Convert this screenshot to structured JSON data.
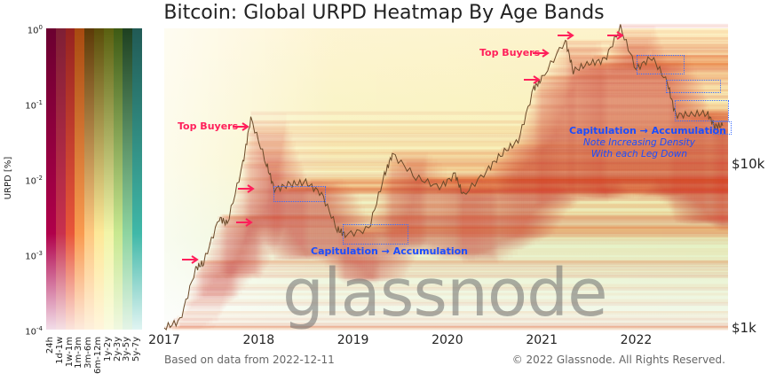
{
  "chart_data": {
    "type": "heatmap",
    "title": "Bitcoin: Global URPD Heatmap By Age Bands",
    "colorbar": {
      "label": "URPD [%]",
      "scale": "log",
      "ticks": [
        "10^0",
        "10^-1",
        "10^-2",
        "10^-3",
        "10^-4"
      ],
      "bands": [
        {
          "name": "24h",
          "colors": [
            "#6b0030",
            "#b0004a",
            "#f2dde8"
          ]
        },
        {
          "name": "1d-1w",
          "colors": [
            "#7f1f35",
            "#c8304e",
            "#f5e0e4"
          ]
        },
        {
          "name": "1w-1m",
          "colors": [
            "#962320",
            "#e8553a",
            "#fbe4dc"
          ]
        },
        {
          "name": "1m-3m",
          "colors": [
            "#a84a10",
            "#f99a50",
            "#fdeadc"
          ]
        },
        {
          "name": "3m-6m",
          "colors": [
            "#5c3a08",
            "#fdc880",
            "#fef0dc"
          ]
        },
        {
          "name": "6m-12m",
          "colors": [
            "#5a4d0a",
            "#fde898",
            "#fff5dc"
          ]
        },
        {
          "name": "1y-2y",
          "colors": [
            "#5a6010",
            "#f2f4a8",
            "#fafbe0"
          ]
        },
        {
          "name": "2y-3y",
          "colors": [
            "#3e5a14",
            "#c8e890",
            "#f0f8e0"
          ]
        },
        {
          "name": "3y-5y",
          "colors": [
            "#1e4020",
            "#8ed4a0",
            "#e4f4e6"
          ]
        },
        {
          "name": "5y-7y",
          "colors": [
            "#215a55",
            "#40b8a8",
            "#e0f4f2"
          ]
        }
      ]
    },
    "x_ticks": [
      "2017",
      "2018",
      "2019",
      "2020",
      "2021",
      "2022"
    ],
    "y_right_ticks": [
      {
        "label": "$10k",
        "value": 10000
      },
      {
        "label": "$1k",
        "value": 1000
      }
    ],
    "y_scale": "log",
    "price_series": [
      [
        "2017-01",
        1000
      ],
      [
        "2017-03",
        1100
      ],
      [
        "2017-05",
        2300
      ],
      [
        "2017-06",
        2500
      ],
      [
        "2017-08",
        4700
      ],
      [
        "2017-09",
        4300
      ],
      [
        "2017-11",
        10000
      ],
      [
        "2017-12",
        19000
      ],
      [
        "2018-02",
        10000
      ],
      [
        "2018-03",
        7000
      ],
      [
        "2018-05",
        7500
      ],
      [
        "2018-07",
        7700
      ],
      [
        "2018-09",
        6600
      ],
      [
        "2018-11",
        4000
      ],
      [
        "2018-12",
        3700
      ],
      [
        "2019-03",
        4000
      ],
      [
        "2019-05",
        8500
      ],
      [
        "2019-06",
        11500
      ],
      [
        "2019-09",
        8300
      ],
      [
        "2019-12",
        7200
      ],
      [
        "2020-02",
        8600
      ],
      [
        "2020-03",
        6400
      ],
      [
        "2020-06",
        9100
      ],
      [
        "2020-08",
        11700
      ],
      [
        "2020-10",
        13800
      ],
      [
        "2020-12",
        29000
      ],
      [
        "2021-01",
        33000
      ],
      [
        "2021-04",
        57000
      ],
      [
        "2021-05",
        37000
      ],
      [
        "2021-07",
        41000
      ],
      [
        "2021-09",
        43000
      ],
      [
        "2021-11",
        68000
      ],
      [
        "2022-01",
        38000
      ],
      [
        "2022-03",
        45000
      ],
      [
        "2022-05",
        31000
      ],
      [
        "2022-06",
        19900
      ],
      [
        "2022-08",
        20000
      ],
      [
        "2022-10",
        20500
      ],
      [
        "2022-11",
        17000
      ],
      [
        "2022-12",
        17100
      ]
    ],
    "annotations": {
      "top_buyers_left": "Top Buyers",
      "top_buyers_right": "Top Buyers",
      "capitulation_left": "Capitulation → Accumulation",
      "capitulation_right": "Capitulation → Accumulation",
      "note_line1": "Note Increasing Density",
      "note_line2": "With each Leg Down"
    },
    "colors": {
      "annotation_pink": "#ff1f5a",
      "annotation_blue": "#1a4dff",
      "price_line": "#6b4a2a"
    }
  },
  "watermark": "glassnode",
  "footer": {
    "left": "Based on data from 2022-12-11",
    "right": "© 2022 Glassnode. All Rights Reserved."
  }
}
